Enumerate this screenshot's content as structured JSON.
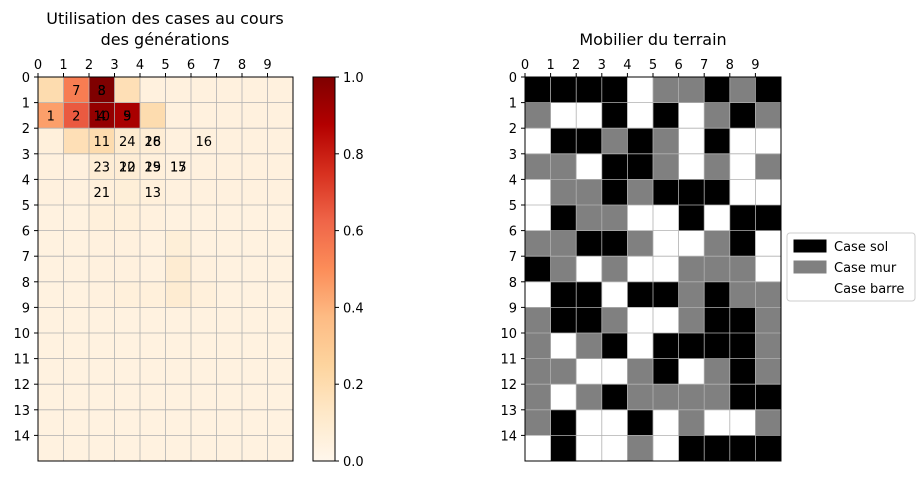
{
  "chart_data": [
    {
      "type": "heatmap",
      "title_lines": [
        "Utilisation des cases au cours",
        "des générations"
      ],
      "xlabel": "",
      "ylabel": "",
      "x_ticks": [
        0,
        1,
        2,
        3,
        4,
        5,
        6,
        7,
        8,
        9
      ],
      "y_ticks": [
        0,
        1,
        2,
        3,
        4,
        5,
        6,
        7,
        8,
        9,
        10,
        11,
        12,
        13,
        14
      ],
      "rows": 15,
      "cols": 10,
      "colormap": "OrRd",
      "vmin": 0.0,
      "vmax": 1.0,
      "colorbar_ticks": [
        "0.0",
        "0.2",
        "0.4",
        "0.6",
        "0.8",
        "1.0"
      ],
      "grid": true,
      "values": [
        [
          0.2,
          0.55,
          1.0,
          0.18,
          0.05,
          0.05,
          0.05,
          0.05,
          0.05,
          0.05
        ],
        [
          0.45,
          0.65,
          0.95,
          0.9,
          0.2,
          0.05,
          0.05,
          0.05,
          0.05,
          0.05
        ],
        [
          0.06,
          0.18,
          0.2,
          0.1,
          0.08,
          0.05,
          0.05,
          0.05,
          0.05,
          0.05
        ],
        [
          0.05,
          0.05,
          0.08,
          0.08,
          0.06,
          0.05,
          0.05,
          0.05,
          0.05,
          0.05
        ],
        [
          0.05,
          0.05,
          0.06,
          0.07,
          0.06,
          0.05,
          0.05,
          0.05,
          0.05,
          0.05
        ],
        [
          0.04,
          0.04,
          0.06,
          0.06,
          0.05,
          0.04,
          0.04,
          0.04,
          0.04,
          0.04
        ],
        [
          0.04,
          0.04,
          0.05,
          0.05,
          0.04,
          0.07,
          0.04,
          0.04,
          0.04,
          0.04
        ],
        [
          0.04,
          0.04,
          0.05,
          0.05,
          0.04,
          0.09,
          0.05,
          0.04,
          0.04,
          0.04
        ],
        [
          0.04,
          0.04,
          0.05,
          0.06,
          0.06,
          0.09,
          0.06,
          0.04,
          0.04,
          0.04
        ],
        [
          0.04,
          0.04,
          0.04,
          0.04,
          0.04,
          0.04,
          0.04,
          0.04,
          0.04,
          0.04
        ],
        [
          0.04,
          0.04,
          0.04,
          0.04,
          0.04,
          0.04,
          0.04,
          0.04,
          0.04,
          0.04
        ],
        [
          0.04,
          0.04,
          0.04,
          0.04,
          0.04,
          0.04,
          0.04,
          0.04,
          0.04,
          0.04
        ],
        [
          0.04,
          0.04,
          0.04,
          0.04,
          0.04,
          0.04,
          0.04,
          0.04,
          0.04,
          0.04
        ],
        [
          0.04,
          0.04,
          0.04,
          0.04,
          0.04,
          0.04,
          0.04,
          0.04,
          0.04,
          0.04
        ],
        [
          0.04,
          0.04,
          0.04,
          0.04,
          0.04,
          0.04,
          0.04,
          0.04,
          0.04,
          0.04
        ]
      ],
      "annotations": [
        {
          "row": 0,
          "col": 1,
          "text": "7"
        },
        {
          "row": 0,
          "col": 2,
          "text": "8"
        },
        {
          "row": 0,
          "col": 2,
          "text": "3"
        },
        {
          "row": 1,
          "col": 0,
          "text": "1"
        },
        {
          "row": 1,
          "col": 1,
          "text": "2"
        },
        {
          "row": 1,
          "col": 2,
          "text": "4"
        },
        {
          "row": 1,
          "col": 2,
          "text": "10"
        },
        {
          "row": 1,
          "col": 3,
          "text": "5"
        },
        {
          "row": 1,
          "col": 3,
          "text": "9"
        },
        {
          "row": 2,
          "col": 2,
          "text": "11"
        },
        {
          "row": 2,
          "col": 3,
          "text": "24"
        },
        {
          "row": 2,
          "col": 4,
          "text": "18"
        },
        {
          "row": 2,
          "col": 4,
          "text": "26"
        },
        {
          "row": 2,
          "col": 6,
          "text": "16"
        },
        {
          "row": 3,
          "col": 2,
          "text": "23"
        },
        {
          "row": 3,
          "col": 3,
          "text": "20"
        },
        {
          "row": 3,
          "col": 3,
          "text": "12"
        },
        {
          "row": 3,
          "col": 4,
          "text": "19"
        },
        {
          "row": 3,
          "col": 4,
          "text": "25"
        },
        {
          "row": 3,
          "col": 5,
          "text": "15"
        },
        {
          "row": 3,
          "col": 5,
          "text": "17"
        },
        {
          "row": 4,
          "col": 2,
          "text": "21"
        },
        {
          "row": 4,
          "col": 4,
          "text": "13"
        }
      ]
    },
    {
      "type": "heatmap",
      "title": "Mobilier du terrain",
      "xlabel": "",
      "ylabel": "",
      "x_ticks": [
        0,
        1,
        2,
        3,
        4,
        5,
        6,
        7,
        8,
        9
      ],
      "y_ticks": [
        0,
        1,
        2,
        3,
        4,
        5,
        6,
        7,
        8,
        9,
        10,
        11,
        12,
        13,
        14
      ],
      "rows": 15,
      "cols": 10,
      "grid": true,
      "legend_position": "right",
      "categories": [
        {
          "name": "Case sol",
          "color": "#000000"
        },
        {
          "name": "Case mur",
          "color": "#808080"
        },
        {
          "name": "Case barre",
          "color": "#ffffff"
        }
      ],
      "cells": [
        [
          0,
          0,
          0,
          0,
          2,
          1,
          1,
          0,
          1,
          0
        ],
        [
          1,
          2,
          2,
          0,
          2,
          0,
          2,
          1,
          0,
          1
        ],
        [
          2,
          0,
          0,
          1,
          0,
          1,
          2,
          0,
          2,
          2
        ],
        [
          1,
          1,
          2,
          0,
          0,
          1,
          2,
          1,
          2,
          1
        ],
        [
          2,
          1,
          1,
          0,
          1,
          0,
          0,
          0,
          2,
          2
        ],
        [
          2,
          0,
          1,
          1,
          2,
          2,
          0,
          2,
          0,
          0
        ],
        [
          1,
          1,
          0,
          0,
          1,
          2,
          2,
          1,
          0,
          2
        ],
        [
          0,
          1,
          2,
          1,
          2,
          2,
          1,
          1,
          1,
          2
        ],
        [
          2,
          0,
          0,
          2,
          0,
          0,
          1,
          0,
          1,
          1
        ],
        [
          1,
          0,
          0,
          1,
          2,
          2,
          1,
          0,
          0,
          1
        ],
        [
          1,
          2,
          1,
          0,
          2,
          0,
          0,
          0,
          0,
          1
        ],
        [
          1,
          1,
          2,
          2,
          1,
          0,
          2,
          1,
          0,
          1
        ],
        [
          1,
          2,
          1,
          0,
          1,
          1,
          1,
          1,
          0,
          0
        ],
        [
          1,
          0,
          2,
          2,
          0,
          2,
          1,
          2,
          2,
          1
        ],
        [
          2,
          0,
          2,
          2,
          1,
          2,
          0,
          0,
          0,
          0
        ]
      ]
    }
  ]
}
